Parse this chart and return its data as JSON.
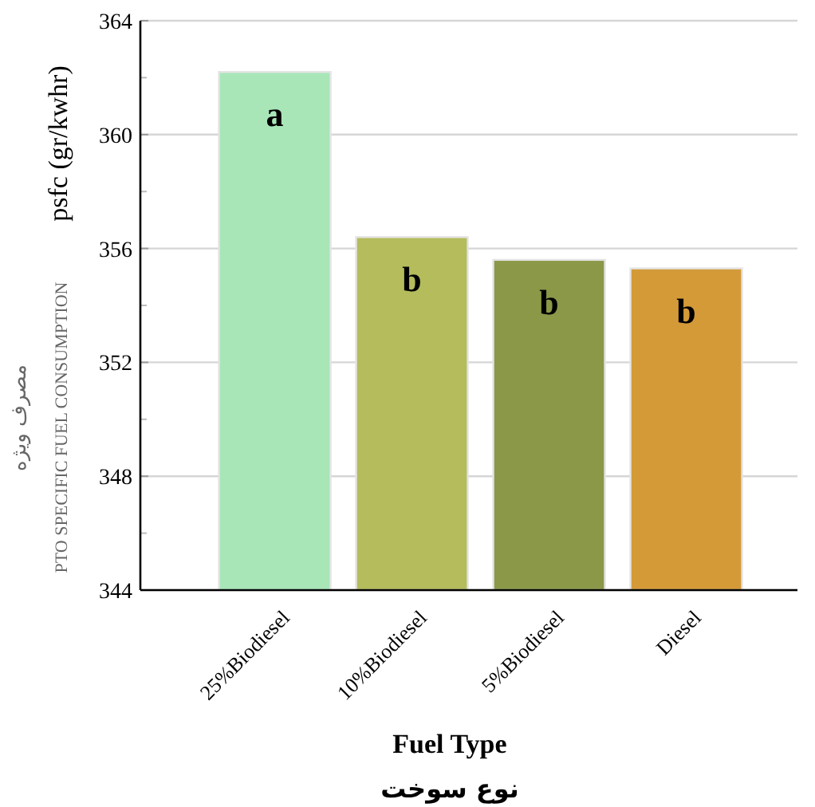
{
  "chart_data": {
    "type": "bar",
    "ylabel": "psfc (gr/kwhr)",
    "xlabel": "Fuel Type",
    "categories": [
      "25%Biodiesel",
      "10%Biodiesel",
      "5%Biodiesel",
      "Diesel"
    ],
    "values": [
      362.2,
      356.4,
      355.6,
      355.3
    ],
    "colors": [
      "#a8e6b8",
      "#b4bc5c",
      "#8a9848",
      "#d49a38"
    ],
    "ylim": [
      344,
      364
    ],
    "yticks": [
      344,
      348,
      352,
      356,
      360,
      364
    ],
    "grid": "y",
    "annotations": [
      {
        "text": "a",
        "x": "25%Biodiesel",
        "y": 362.2
      },
      {
        "text": "b",
        "x": "10%Biodiesel",
        "y": 356.4
      },
      {
        "text": "b",
        "x": "5%Biodiesel",
        "y": 355.6
      },
      {
        "text": "b",
        "x": "Diesel",
        "y": 355.3
      },
      "PTO SPECIFIC FUEL CONSUMPTION",
      "مصرف ویژه",
      "نوع سوخت"
    ]
  }
}
